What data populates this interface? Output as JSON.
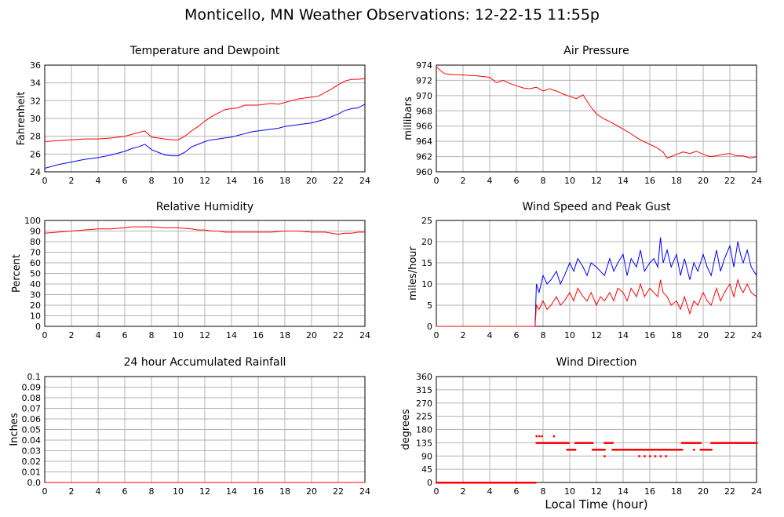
{
  "page": {
    "title": "Monticello, MN Weather Observations: 12-22-15 11:55p",
    "x_axis_title": "Local Time (hour)"
  },
  "chart_data": [
    {
      "id": "temp",
      "type": "line",
      "title": "Temperature and Dewpoint",
      "ylabel": "Fahrenheit",
      "xlim": [
        0,
        24
      ],
      "ylim": [
        24,
        36
      ],
      "xticks": [
        0,
        2,
        4,
        6,
        8,
        10,
        12,
        14,
        16,
        18,
        20,
        22,
        24
      ],
      "yticks": [
        24,
        26,
        28,
        30,
        32,
        34,
        36
      ],
      "grid": true,
      "series": [
        {
          "color": "#ff0000",
          "x": [
            0,
            1,
            2,
            3,
            4,
            5,
            6,
            6.5,
            7,
            7.5,
            8,
            8.5,
            9,
            9.5,
            10,
            10.5,
            11,
            11.5,
            12,
            12.5,
            13,
            13.5,
            14,
            14.5,
            15,
            15.5,
            16,
            16.5,
            17,
            17.5,
            18,
            18.5,
            19,
            19.5,
            20,
            20.5,
            21,
            21.5,
            22,
            22.5,
            23,
            23.5,
            24
          ],
          "y": [
            27.4,
            27.5,
            27.6,
            27.7,
            27.7,
            27.8,
            28,
            28.2,
            28.4,
            28.6,
            27.9,
            27.8,
            27.7,
            27.6,
            27.6,
            28,
            28.6,
            29.1,
            29.7,
            30.2,
            30.6,
            31,
            31.1,
            31.2,
            31.5,
            31.5,
            31.5,
            31.6,
            31.7,
            31.6,
            31.8,
            32,
            32.2,
            32.3,
            32.4,
            32.5,
            32.9,
            33.3,
            33.8,
            34.2,
            34.4,
            34.4,
            34.5
          ]
        },
        {
          "color": "#0000ff",
          "x": [
            0,
            1,
            2,
            3,
            4,
            5,
            6,
            6.5,
            7,
            7.5,
            8,
            8.5,
            9,
            9.5,
            10,
            10.5,
            11,
            11.5,
            12,
            12.5,
            13,
            13.5,
            14,
            14.5,
            15,
            15.5,
            16,
            16.5,
            17,
            17.5,
            18,
            18.5,
            19,
            19.5,
            20,
            20.5,
            21,
            21.5,
            22,
            22.5,
            23,
            23.5,
            24
          ],
          "y": [
            24.4,
            24.8,
            25.1,
            25.4,
            25.6,
            25.9,
            26.3,
            26.6,
            26.8,
            27.1,
            26.5,
            26.2,
            25.9,
            25.8,
            25.8,
            26.2,
            26.8,
            27.1,
            27.4,
            27.6,
            27.7,
            27.8,
            27.9,
            28.1,
            28.3,
            28.5,
            28.6,
            28.7,
            28.8,
            28.9,
            29.1,
            29.2,
            29.3,
            29.4,
            29.5,
            29.7,
            29.9,
            30.2,
            30.5,
            30.9,
            31.1,
            31.2,
            31.6
          ]
        }
      ]
    },
    {
      "id": "pressure",
      "type": "line",
      "title": "Air Pressure",
      "ylabel": "millibars",
      "xlim": [
        0,
        24
      ],
      "ylim": [
        960,
        974
      ],
      "xticks": [
        0,
        2,
        4,
        6,
        8,
        10,
        12,
        14,
        16,
        18,
        20,
        22,
        24
      ],
      "yticks": [
        960,
        962,
        964,
        966,
        968,
        970,
        972,
        974
      ],
      "grid": true,
      "series": [
        {
          "color": "#ff0000",
          "x": [
            0,
            0.3,
            0.6,
            1,
            2,
            3,
            4,
            4.5,
            5,
            5.5,
            6,
            6.5,
            7,
            7.5,
            8,
            8.5,
            9,
            9.5,
            10,
            10.5,
            11,
            11.5,
            12,
            12.5,
            13,
            13.5,
            14,
            14.5,
            15,
            15.5,
            16,
            16.5,
            17,
            17.3,
            17.6,
            18,
            18.5,
            19,
            19.5,
            20,
            20.5,
            21,
            21.5,
            22,
            22.5,
            23,
            23.5,
            24
          ],
          "y": [
            973.8,
            973.3,
            972.9,
            972.8,
            972.7,
            972.6,
            972.4,
            971.7,
            972,
            971.6,
            971.3,
            971,
            970.9,
            971.1,
            970.6,
            970.9,
            970.6,
            970.2,
            969.9,
            969.6,
            970.1,
            968.7,
            967.6,
            967,
            966.6,
            966.1,
            965.6,
            965.1,
            964.5,
            964,
            963.6,
            963.2,
            962.6,
            961.8,
            962,
            962.3,
            962.6,
            962.4,
            962.7,
            962.3,
            962,
            962.1,
            962.3,
            962.4,
            962.1,
            962.1,
            961.8,
            962
          ]
        }
      ]
    },
    {
      "id": "humidity",
      "type": "line",
      "title": "Relative Humidity",
      "ylabel": "Percent",
      "xlim": [
        0,
        24
      ],
      "ylim": [
        0,
        100
      ],
      "xticks": [
        0,
        2,
        4,
        6,
        8,
        10,
        12,
        14,
        16,
        18,
        20,
        22,
        24
      ],
      "yticks": [
        0,
        10,
        20,
        30,
        40,
        50,
        60,
        70,
        80,
        90,
        100
      ],
      "grid": true,
      "series": [
        {
          "color": "#ff0000",
          "x": [
            0,
            1,
            2,
            3,
            4,
            5,
            6,
            6.5,
            7,
            8,
            9,
            10,
            11,
            11.5,
            12,
            12.5,
            13,
            13.5,
            14,
            15,
            16,
            17,
            18,
            19,
            20,
            21,
            21.5,
            22,
            22.5,
            23,
            23.5,
            24
          ],
          "y": [
            88,
            89,
            90,
            91,
            92,
            92,
            93,
            94,
            94,
            94,
            93,
            93,
            92,
            91,
            91,
            90,
            90,
            89,
            89,
            89,
            89,
            89,
            90,
            90,
            89,
            89,
            88,
            87,
            88,
            88,
            89,
            89
          ]
        }
      ]
    },
    {
      "id": "wind",
      "type": "line",
      "title": "Wind Speed and Peak Gust",
      "ylabel": "miles/hour",
      "xlim": [
        0,
        24
      ],
      "ylim": [
        0,
        25
      ],
      "xticks": [
        0,
        2,
        4,
        6,
        8,
        10,
        12,
        14,
        16,
        18,
        20,
        22,
        24
      ],
      "yticks": [
        0,
        5,
        10,
        15,
        20,
        25
      ],
      "grid": true,
      "series": [
        {
          "color": "#0000ff",
          "x": [
            0,
            7.4,
            7.5,
            7.7,
            8,
            8.3,
            8.6,
            9,
            9.3,
            9.6,
            10,
            10.3,
            10.6,
            11,
            11.3,
            11.6,
            12,
            12.3,
            12.6,
            13,
            13.3,
            13.6,
            14,
            14.3,
            14.6,
            15,
            15.3,
            15.6,
            16,
            16.3,
            16.6,
            16.8,
            17,
            17.3,
            17.6,
            18,
            18.3,
            18.6,
            19,
            19.3,
            19.6,
            20,
            20.3,
            20.6,
            21,
            21.3,
            21.6,
            22,
            22.3,
            22.6,
            22.8,
            23,
            23.3,
            23.6,
            24
          ],
          "y": [
            0,
            0,
            10,
            8,
            12,
            10,
            11,
            13,
            10,
            12,
            15,
            13,
            16,
            14,
            12,
            15,
            14,
            13,
            12,
            16,
            13,
            15,
            17,
            12,
            16,
            14,
            18,
            13,
            15,
            16,
            14,
            21,
            15,
            18,
            14,
            17,
            12,
            16,
            11,
            15,
            13,
            17,
            14,
            12,
            18,
            13,
            16,
            19,
            14,
            20,
            17,
            15,
            18,
            14,
            12
          ]
        },
        {
          "color": "#ff0000",
          "x": [
            0,
            7.4,
            7.5,
            7.7,
            8,
            8.3,
            8.6,
            9,
            9.3,
            9.6,
            10,
            10.3,
            10.6,
            11,
            11.3,
            11.6,
            12,
            12.3,
            12.6,
            13,
            13.3,
            13.6,
            14,
            14.3,
            14.6,
            15,
            15.3,
            15.6,
            16,
            16.3,
            16.6,
            16.8,
            17,
            17.3,
            17.6,
            18,
            18.3,
            18.6,
            19,
            19.3,
            19.6,
            20,
            20.3,
            20.6,
            21,
            21.3,
            21.6,
            22,
            22.3,
            22.6,
            22.8,
            23,
            23.3,
            23.6,
            24
          ],
          "y": [
            0,
            0,
            5,
            4,
            6,
            4,
            5,
            7,
            5,
            6,
            8,
            6,
            9,
            7,
            6,
            8,
            5,
            7,
            6,
            8,
            6,
            9,
            8,
            6,
            9,
            7,
            10,
            7,
            9,
            8,
            7,
            11,
            8,
            7,
            5,
            6,
            4,
            7,
            3,
            6,
            5,
            8,
            6,
            5,
            9,
            6,
            8,
            10,
            7,
            11,
            9,
            8,
            10,
            8,
            7
          ]
        }
      ]
    },
    {
      "id": "rain",
      "type": "line",
      "title": "24 hour Accumulated Rainfall",
      "ylabel": "Inches",
      "xlim": [
        0,
        24
      ],
      "ylim": [
        0,
        0.1
      ],
      "xticks": [
        0,
        2,
        4,
        6,
        8,
        10,
        12,
        14,
        16,
        18,
        20,
        22,
        24
      ],
      "yticks": [
        "0.0",
        "0.01",
        "0.02",
        "0.03",
        "0.04",
        "0.05",
        "0.06",
        "0.07",
        "0.08",
        "0.09",
        "0.1"
      ],
      "grid": true,
      "series": [
        {
          "color": "#ff0000",
          "x": [
            0,
            24
          ],
          "y": [
            0,
            0
          ]
        }
      ]
    },
    {
      "id": "direction",
      "type": "scatter",
      "title": "Wind Direction",
      "ylabel": "degrees",
      "xlim": [
        0,
        24
      ],
      "ylim": [
        0,
        360
      ],
      "xticks": [
        0,
        2,
        4,
        6,
        8,
        10,
        12,
        14,
        16,
        18,
        20,
        22,
        24
      ],
      "yticks": [
        0,
        45,
        90,
        135,
        180,
        225,
        270,
        315,
        360
      ],
      "grid": true,
      "series": [
        {
          "color": "#ff0000",
          "segments": [
            {
              "x0": 0,
              "x1": 7.4,
              "y": 0
            },
            {
              "x0": 7.5,
              "x1": 9.8,
              "y": 135
            },
            {
              "x0": 9.8,
              "x1": 10.4,
              "y": 112
            },
            {
              "x0": 10.4,
              "x1": 11.7,
              "y": 135
            },
            {
              "x0": 11.7,
              "x1": 12.6,
              "y": 112
            },
            {
              "x0": 12.6,
              "x1": 13.2,
              "y": 135
            },
            {
              "x0": 13.2,
              "x1": 18.4,
              "y": 112
            },
            {
              "x0": 18.4,
              "x1": 19.8,
              "y": 135
            },
            {
              "x0": 19.8,
              "x1": 20.6,
              "y": 112
            },
            {
              "x0": 20.6,
              "x1": 24,
              "y": 135
            }
          ],
          "extra_points": [
            {
              "x": 7.5,
              "y": 158
            },
            {
              "x": 7.7,
              "y": 158
            },
            {
              "x": 7.9,
              "y": 158
            },
            {
              "x": 8.8,
              "y": 158
            },
            {
              "x": 9.9,
              "y": 135
            },
            {
              "x": 12.6,
              "y": 90
            },
            {
              "x": 15.2,
              "y": 90
            },
            {
              "x": 15.6,
              "y": 90
            },
            {
              "x": 16.0,
              "y": 90
            },
            {
              "x": 16.4,
              "y": 90
            },
            {
              "x": 16.8,
              "y": 90
            },
            {
              "x": 17.2,
              "y": 90
            },
            {
              "x": 19.3,
              "y": 112
            }
          ]
        }
      ]
    }
  ]
}
